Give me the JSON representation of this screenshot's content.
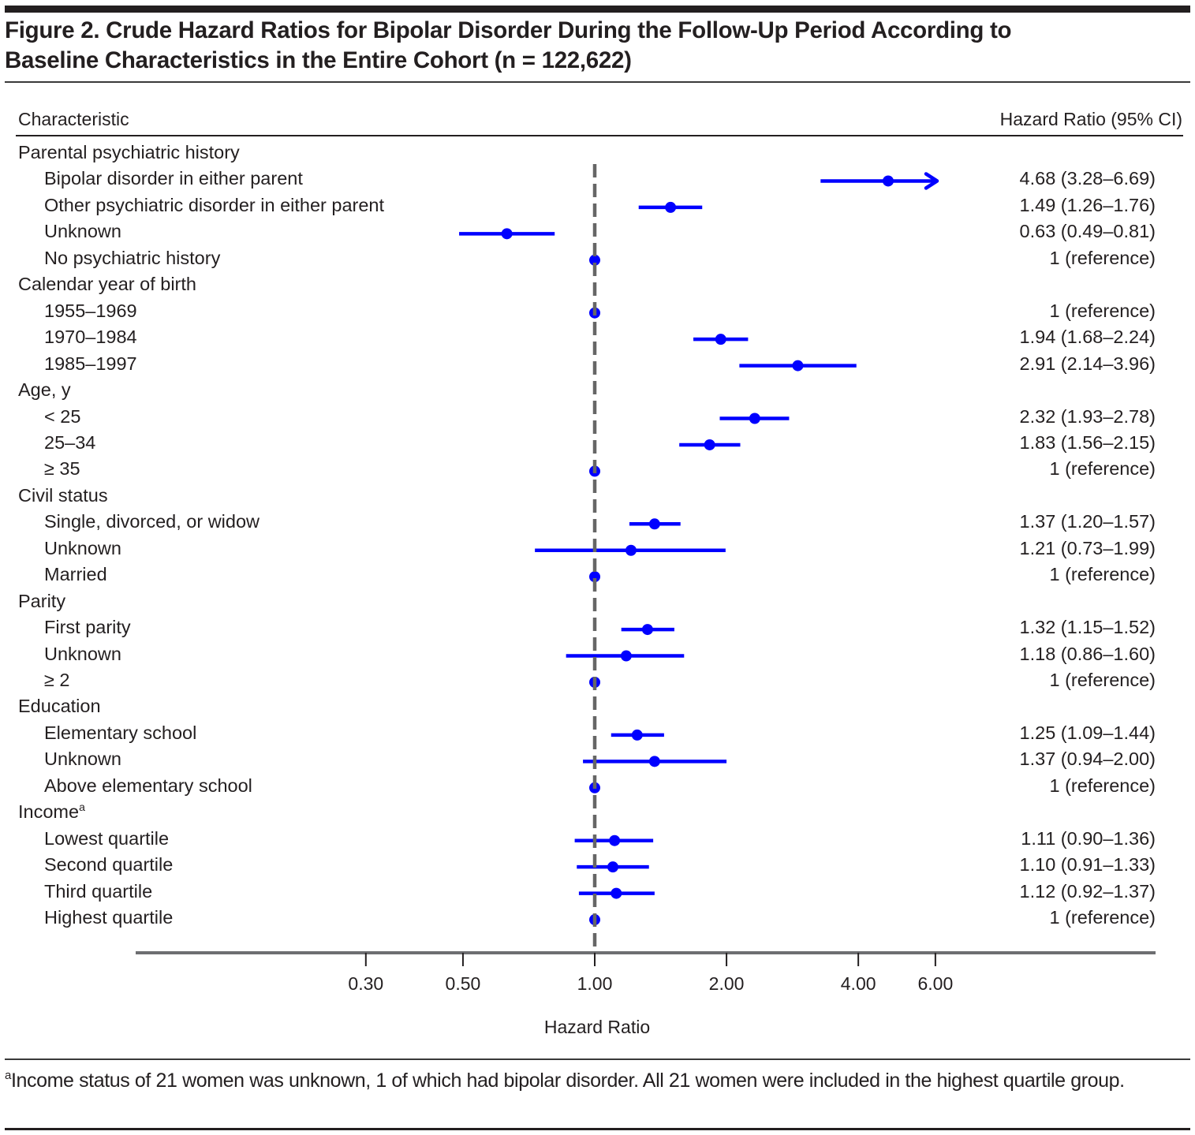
{
  "figure": {
    "title_line1": "Figure 2. Crude Hazard Ratios for Bipolar Disorder During the Follow-Up Period According to",
    "title_line2": "Baseline Characteristics in the Entire Cohort (n = 122,622)",
    "column_left": "Characteristic",
    "column_right": "Hazard Ratio (95% CI)",
    "footnote_marker": "a",
    "footnote_text": "Income status of 21 women was unknown, 1 of which had bipolar disorder. All 21 women were included in the highest quartile group."
  },
  "colors": {
    "estimate": "#0000ff",
    "reference_line": "#666666",
    "axis": "#6d6e71",
    "text": "#231f20"
  },
  "chart_data": {
    "type": "forest",
    "title": "Crude Hazard Ratios for Bipolar Disorder During the Follow-Up Period According to Baseline Characteristics in the Entire Cohort (n = 122,622)",
    "xlabel": "Hazard Ratio",
    "xscale": "log",
    "xlim": [
      0.15,
      14.0
    ],
    "xticks": [
      0.3,
      0.5,
      1.0,
      2.0,
      4.0,
      6.0
    ],
    "xtick_labels": [
      "0.30",
      "0.50",
      "1.00",
      "2.00",
      "4.00",
      "6.00"
    ],
    "reference_value": 1.0,
    "grid": false,
    "rows": [
      {
        "kind": "group",
        "label": "Parental psychiatric history"
      },
      {
        "kind": "item",
        "label": "Bipolar disorder in either parent",
        "hr": 4.68,
        "lo": 3.28,
        "hi": 6.69,
        "text": "4.68 (3.28–6.69)",
        "arrow": true
      },
      {
        "kind": "item",
        "label": "Other psychiatric disorder in either parent",
        "hr": 1.49,
        "lo": 1.26,
        "hi": 1.76,
        "text": "1.49 (1.26–1.76)"
      },
      {
        "kind": "item",
        "label": "Unknown",
        "hr": 0.63,
        "lo": 0.49,
        "hi": 0.81,
        "text": "0.63 (0.49–0.81)"
      },
      {
        "kind": "item",
        "label": "No psychiatric history",
        "hr": 1,
        "lo": null,
        "hi": null,
        "text": "1 (reference)"
      },
      {
        "kind": "group",
        "label": "Calendar year of birth"
      },
      {
        "kind": "item",
        "label": "1955–1969",
        "hr": 1,
        "lo": null,
        "hi": null,
        "text": "1 (reference)"
      },
      {
        "kind": "item",
        "label": "1970–1984",
        "hr": 1.94,
        "lo": 1.68,
        "hi": 2.24,
        "text": "1.94 (1.68–2.24)"
      },
      {
        "kind": "item",
        "label": "1985–1997",
        "hr": 2.91,
        "lo": 2.14,
        "hi": 3.96,
        "text": "2.91 (2.14–3.96)"
      },
      {
        "kind": "group",
        "label": "Age, y"
      },
      {
        "kind": "item",
        "label": "< 25",
        "hr": 2.32,
        "lo": 1.93,
        "hi": 2.78,
        "text": "2.32 (1.93–2.78)"
      },
      {
        "kind": "item",
        "label": "25–34",
        "hr": 1.83,
        "lo": 1.56,
        "hi": 2.15,
        "text": "1.83 (1.56–2.15)"
      },
      {
        "kind": "item",
        "label": "≥ 35",
        "hr": 1,
        "lo": null,
        "hi": null,
        "text": "1 (reference)"
      },
      {
        "kind": "group",
        "label": "Civil status"
      },
      {
        "kind": "item",
        "label": "Single, divorced, or widow",
        "hr": 1.37,
        "lo": 1.2,
        "hi": 1.57,
        "text": "1.37 (1.20–1.57)"
      },
      {
        "kind": "item",
        "label": "Unknown",
        "hr": 1.21,
        "lo": 0.73,
        "hi": 1.99,
        "text": "1.21 (0.73–1.99)"
      },
      {
        "kind": "item",
        "label": "Married",
        "hr": 1,
        "lo": null,
        "hi": null,
        "text": "1 (reference)"
      },
      {
        "kind": "group",
        "label": "Parity"
      },
      {
        "kind": "item",
        "label": "First parity",
        "hr": 1.32,
        "lo": 1.15,
        "hi": 1.52,
        "text": "1.32 (1.15–1.52)"
      },
      {
        "kind": "item",
        "label": "Unknown",
        "hr": 1.18,
        "lo": 0.86,
        "hi": 1.6,
        "text": "1.18 (0.86–1.60)"
      },
      {
        "kind": "item",
        "label": "≥ 2",
        "hr": 1,
        "lo": null,
        "hi": null,
        "text": "1 (reference)"
      },
      {
        "kind": "group",
        "label": "Education"
      },
      {
        "kind": "item",
        "label": "Elementary school",
        "hr": 1.25,
        "lo": 1.09,
        "hi": 1.44,
        "text": "1.25 (1.09–1.44)"
      },
      {
        "kind": "item",
        "label": "Unknown",
        "hr": 1.37,
        "lo": 0.94,
        "hi": 2.0,
        "text": "1.37 (0.94–2.00)"
      },
      {
        "kind": "item",
        "label": "Above elementary school",
        "hr": 1,
        "lo": null,
        "hi": null,
        "text": "1 (reference)"
      },
      {
        "kind": "group",
        "label": "Income",
        "sup": "a"
      },
      {
        "kind": "item",
        "label": "Lowest quartile",
        "hr": 1.11,
        "lo": 0.9,
        "hi": 1.36,
        "text": "1.11 (0.90–1.36)"
      },
      {
        "kind": "item",
        "label": "Second quartile",
        "hr": 1.1,
        "lo": 0.91,
        "hi": 1.33,
        "text": "1.10 (0.91–1.33)"
      },
      {
        "kind": "item",
        "label": "Third quartile",
        "hr": 1.12,
        "lo": 0.92,
        "hi": 1.37,
        "text": "1.12 (0.92–1.37)"
      },
      {
        "kind": "item",
        "label": "Highest quartile",
        "hr": 1,
        "lo": null,
        "hi": null,
        "text": "1 (reference)"
      }
    ]
  }
}
